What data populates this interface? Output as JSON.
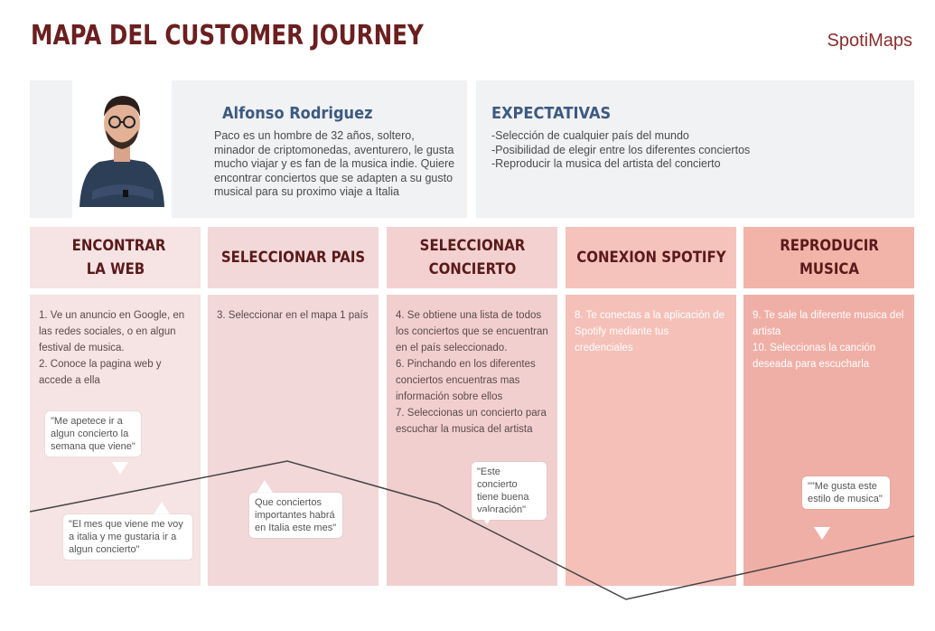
{
  "title": "MAPA DEL CUSTOMER JOURNEY",
  "brand": "SpotiMaps",
  "persona": {
    "name": "Alfonso Rodriguez",
    "description": "Paco es un hombre de 32 años, soltero, minador de criptomonedas, aventurero, le gusta mucho viajar y es fan de la musica indie. Quiere encontrar conciertos que se adapten a su gusto musical para su proximo viaje a Italia"
  },
  "expectations": {
    "title": "EXPECTATIVAS",
    "items": [
      "-Selección de cualquier país del mundo",
      "-Posibilidad de elegir entre los diferentes conciertos",
      "-Reproducir la musica del artista del concierto"
    ]
  },
  "stages": [
    {
      "title": "ENCONTRAR LA WEB",
      "steps": [
        "1. Ve un anuncio en Google, en las redes sociales, o en algun festival de musica.",
        "2. Conoce la pagina web y accede a ella"
      ],
      "head_color": "#f6e3e4",
      "body_color": "#f6e3e4"
    },
    {
      "title": "SELECCIONAR PAIS",
      "steps": [
        "3. Seleccionar en el mapa 1 país"
      ],
      "head_color": "#f3d8d9",
      "body_color": "#f3d8d9"
    },
    {
      "title": "SELECCIONAR CONCIERTO",
      "steps": [
        "4. Se obtiene una lista de todos los conciertos que se encuentran en el país seleccionado.",
        "6. Pinchando en los diferentes conciertos encuentras mas información sobre ellos",
        "7. Seleccionas un concierto para escuchar la musica del artista"
      ],
      "head_color": "#f3d1d1",
      "body_color": "#f2cfcf"
    },
    {
      "title": "CONEXION SPOTIFY",
      "steps": [
        "8. Te conectas a la aplicación de Spotify mediante tus credenciales"
      ],
      "head_color": "#f5c3bb",
      "body_color": "#f5c0b8"
    },
    {
      "title": "REPRODUCIR MUSICA",
      "steps": [
        "9. Te sale la diferente musica del artista",
        "10. Seleccionas la canción deseada para escucharla"
      ],
      "head_color": "#f2b3a9",
      "body_color": "#f0afa6"
    }
  ],
  "quotes": [
    "\"Me apetece ir a algun concierto la semana que viene\"",
    "\"El mes que viene me voy a italia y me gustaria ir a algun concierto\"",
    "Que conciertos importantes habrá en Italia este mes\"",
    "\"Este concierto tiene buena valoración\"",
    "\"\"Me gusta este estilo  de musica\""
  ],
  "colors": {
    "title": "#6b1f1f",
    "brand": "#8a2e2e",
    "persona_name": "#3d5a80",
    "journey_line": "#444444"
  }
}
